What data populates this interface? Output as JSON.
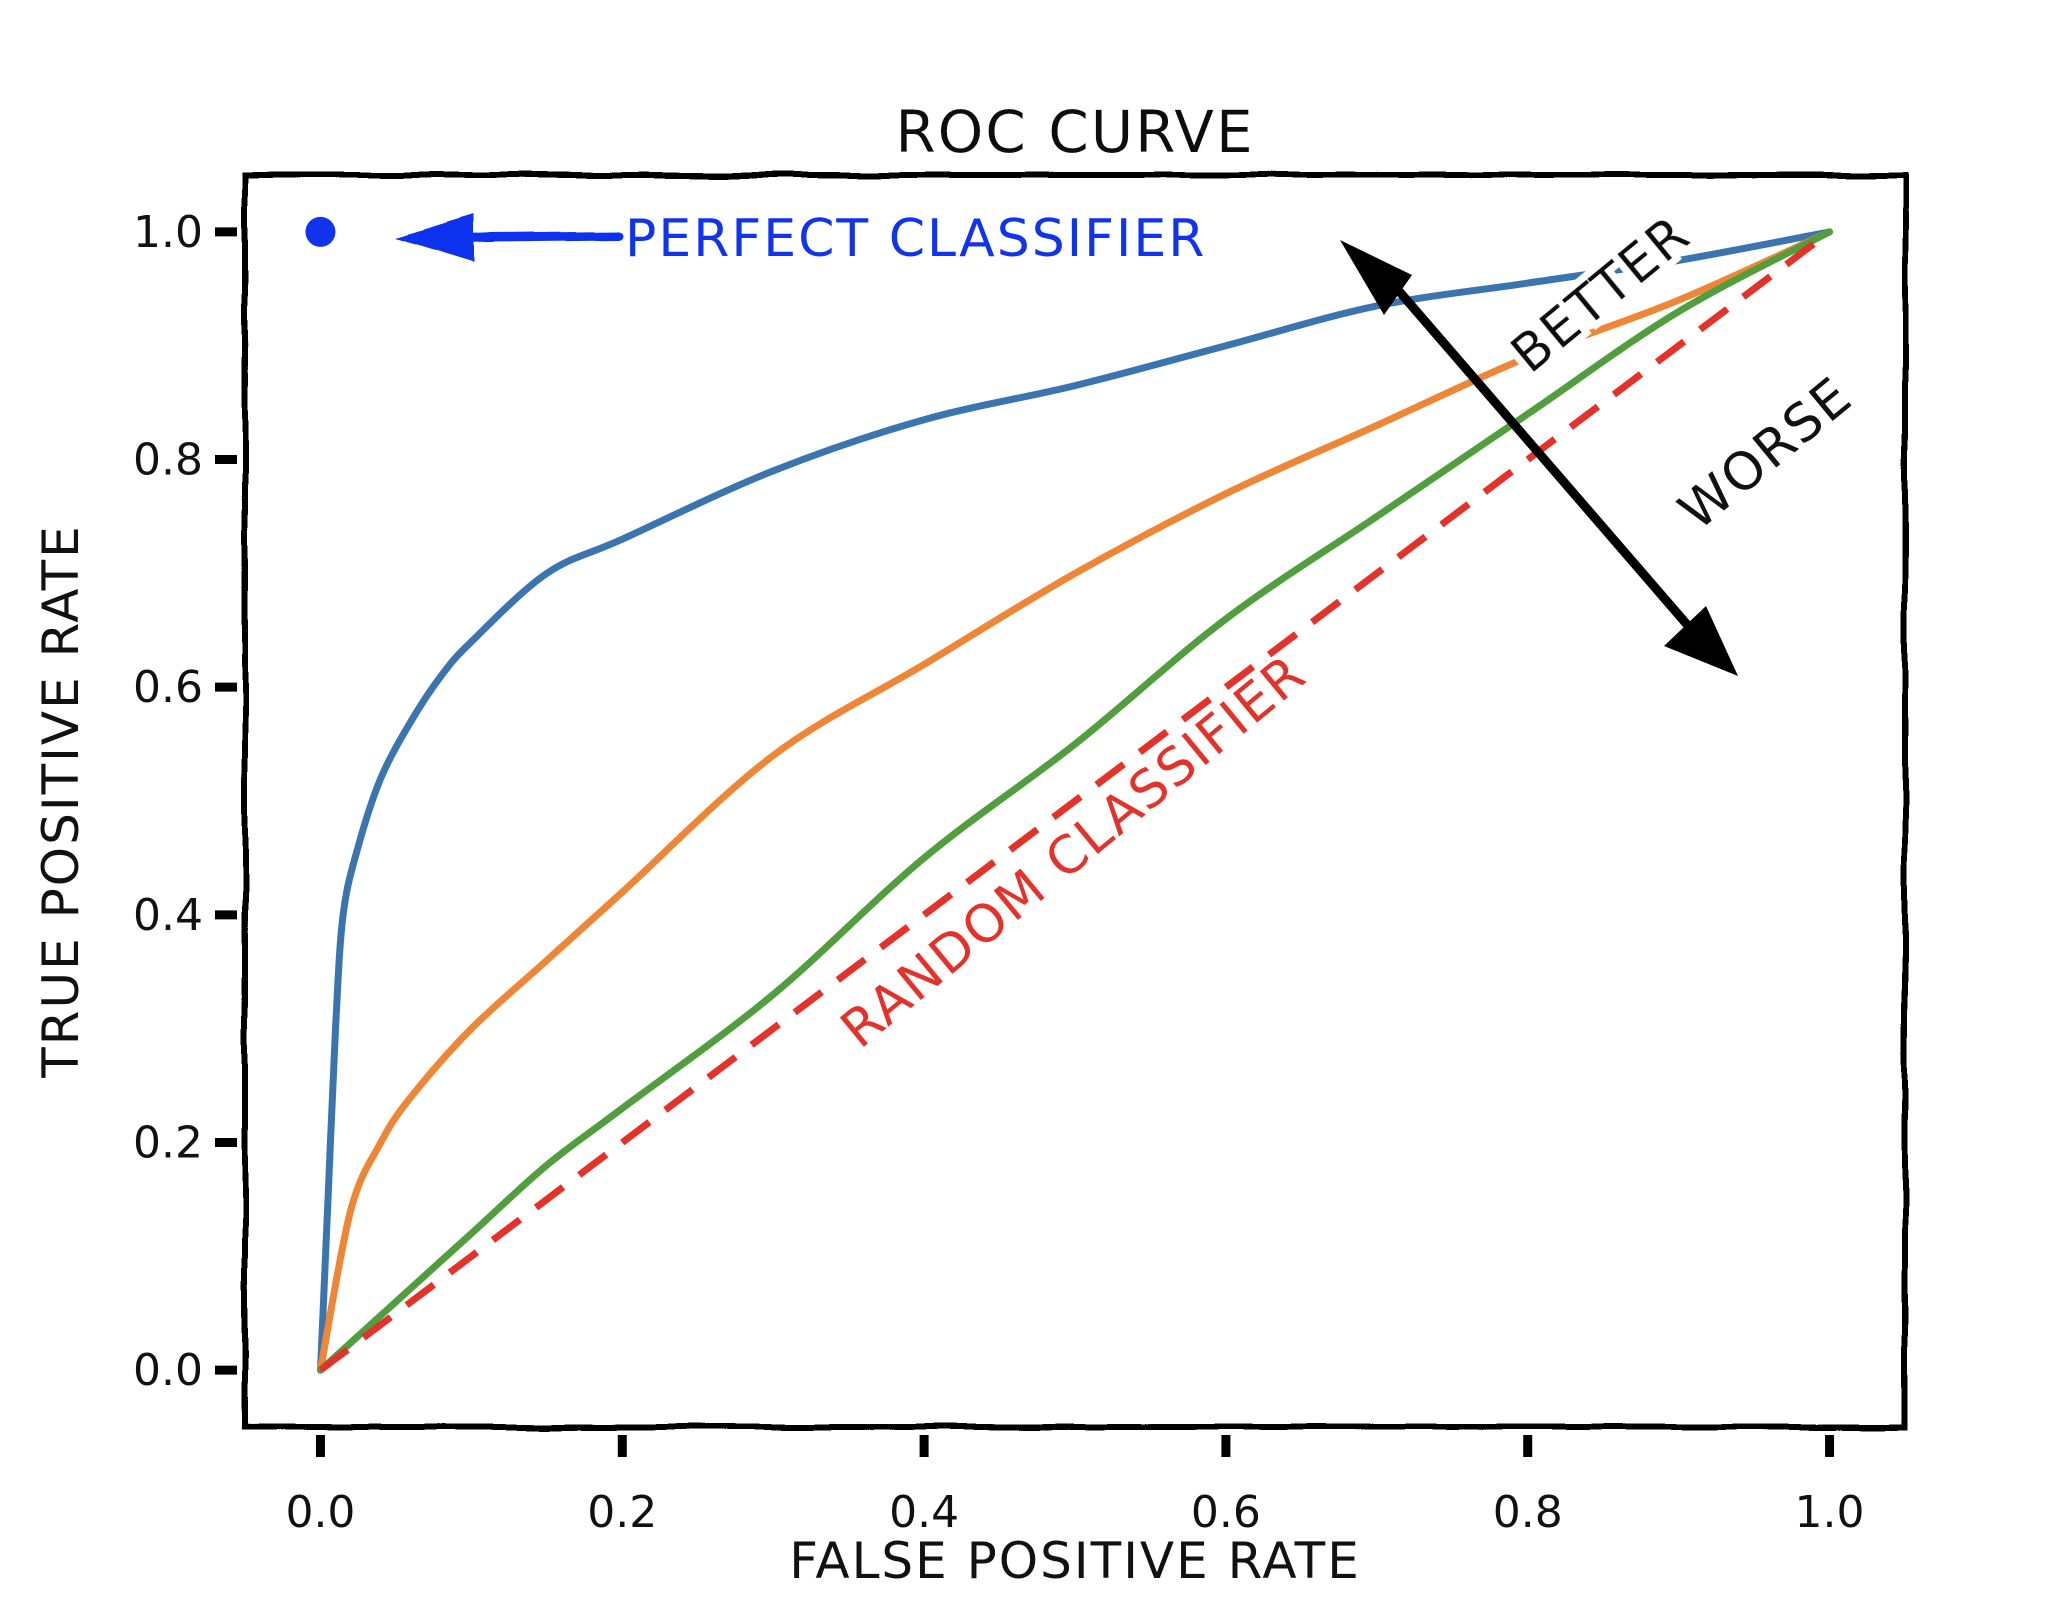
{
  "chart_data": {
    "type": "line",
    "title": "ROC CURVE",
    "xlabel": "FALSE POSITIVE RATE",
    "ylabel": "TRUE POSITIVE RATE",
    "xlim": [
      -0.05,
      1.05
    ],
    "ylim": [
      -0.05,
      1.05
    ],
    "xticks": [
      "0.0",
      "0.2",
      "0.4",
      "0.6",
      "0.8",
      "1.0"
    ],
    "yticks": [
      "0.0",
      "0.2",
      "0.4",
      "0.6",
      "0.8",
      "1.0"
    ],
    "grid": false,
    "series": [
      {
        "color": "#3b75af",
        "x": [
          0,
          0.005,
          0.01,
          0.015,
          0.025,
          0.04,
          0.06,
          0.08,
          0.1,
          0.15,
          0.2,
          0.3,
          0.4,
          0.5,
          0.6,
          0.7,
          0.8,
          0.9,
          1.0
        ],
        "y": [
          0,
          0.15,
          0.3,
          0.4,
          0.46,
          0.52,
          0.57,
          0.61,
          0.64,
          0.7,
          0.73,
          0.79,
          0.835,
          0.865,
          0.9,
          0.935,
          0.955,
          0.975,
          1.0
        ]
      },
      {
        "color": "#ef8636",
        "x": [
          0,
          0.02,
          0.04,
          0.06,
          0.1,
          0.15,
          0.2,
          0.3,
          0.4,
          0.5,
          0.6,
          0.7,
          0.8,
          0.9,
          1.0
        ],
        "y": [
          0,
          0.14,
          0.2,
          0.24,
          0.3,
          0.36,
          0.42,
          0.54,
          0.62,
          0.7,
          0.77,
          0.83,
          0.89,
          0.94,
          1.0
        ]
      },
      {
        "color": "#519e3e",
        "x": [
          0,
          0.05,
          0.1,
          0.15,
          0.2,
          0.3,
          0.4,
          0.5,
          0.6,
          0.7,
          0.8,
          0.9,
          1.0
        ],
        "y": [
          0,
          0.06,
          0.12,
          0.18,
          0.23,
          0.33,
          0.45,
          0.55,
          0.66,
          0.75,
          0.84,
          0.93,
          1.0
        ]
      },
      {
        "name": "RANDOM CLASSIFIER",
        "color": "#e4322b",
        "dashed": true,
        "x": [
          0,
          1
        ],
        "y": [
          0,
          1
        ]
      }
    ],
    "points": [
      {
        "name": "PERFECT CLASSIFIER",
        "x": 0,
        "y": 1,
        "color": "#1033ee"
      }
    ],
    "annotations": [
      {
        "text": "PERFECT CLASSIFIER",
        "color": "#1033ee"
      },
      {
        "text": "RANDOM CLASSIFIER",
        "color": "#e4322b"
      },
      {
        "text": "BETTER",
        "color": "#111111"
      },
      {
        "text": "WORSE",
        "color": "#111111"
      }
    ]
  }
}
